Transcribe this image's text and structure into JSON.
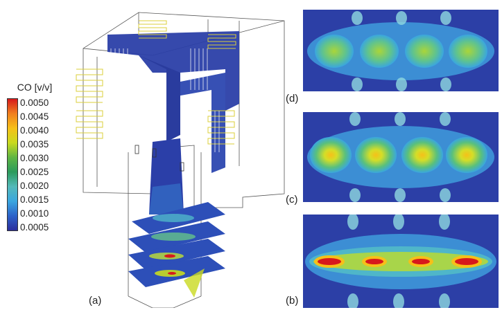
{
  "legend": {
    "title": "CO [v/v]",
    "ticks": [
      "0.0050",
      "0.0045",
      "0.0040",
      "0.0035",
      "0.0030",
      "0.0025",
      "0.0020",
      "0.0015",
      "0.0010",
      "0.0005"
    ],
    "colors": [
      "#d7191c",
      "#f07f1e",
      "#f6c019",
      "#c9da1f",
      "#5fb543",
      "#2c9b5c",
      "#54b9b9",
      "#3aa6df",
      "#2c62c9",
      "#2b2d9c"
    ]
  },
  "labels": {
    "a": "(a)",
    "b": "(b)",
    "c": "(c)",
    "d": "(d)"
  }
}
